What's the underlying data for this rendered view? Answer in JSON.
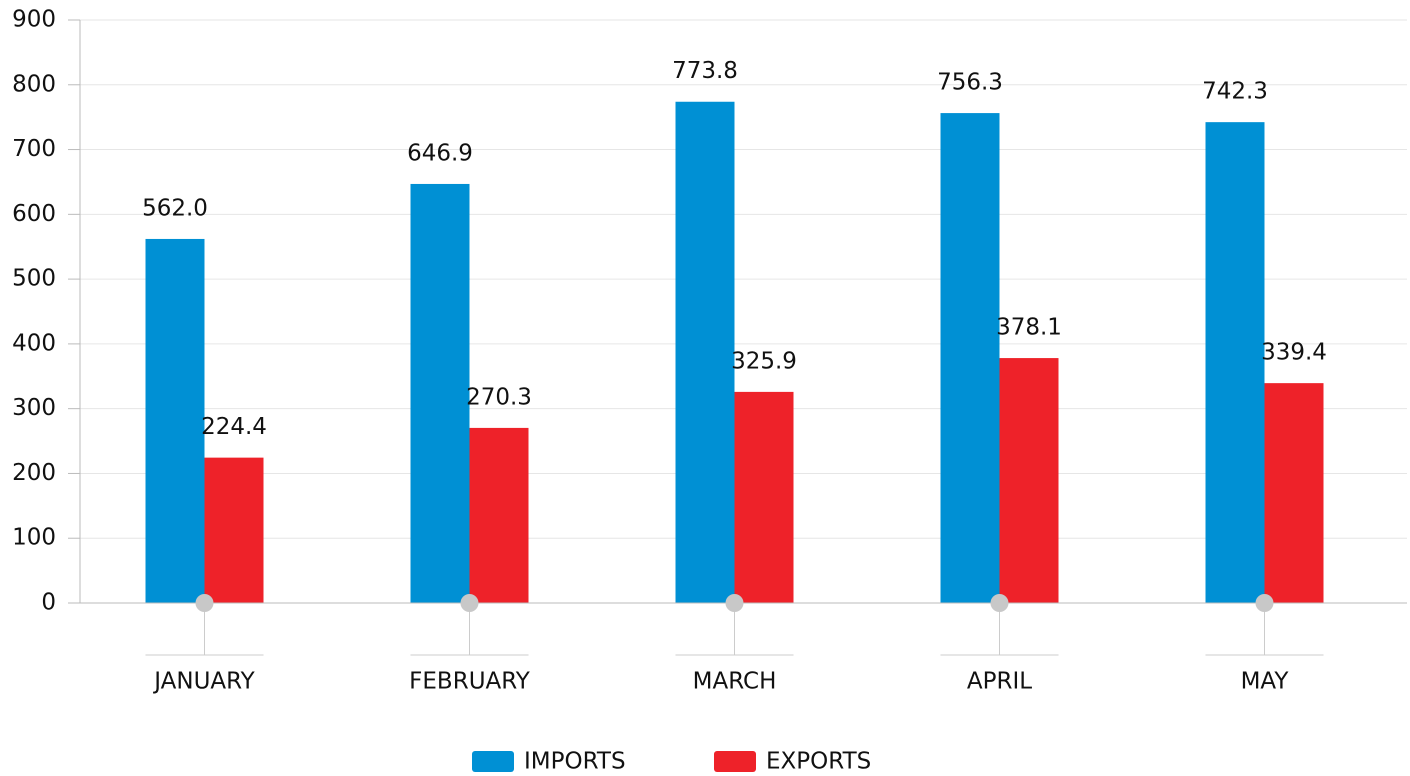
{
  "chart_data": {
    "type": "bar",
    "categories": [
      "JANUARY",
      "FEBRUARY",
      "MARCH",
      "APRIL",
      "MAY"
    ],
    "series": [
      {
        "name": "IMPORTS",
        "color": "#0090d4",
        "values": [
          562.0,
          646.9,
          773.8,
          756.3,
          742.3
        ],
        "value_labels": [
          "562.0",
          "646.9",
          "773.8",
          "756.3",
          "742.3"
        ]
      },
      {
        "name": "EXPORTS",
        "color": "#ee2229",
        "values": [
          224.4,
          270.3,
          325.9,
          378.1,
          339.4
        ],
        "value_labels": [
          "224.4",
          "270.3",
          "325.9",
          "378.1",
          "339.4"
        ]
      }
    ],
    "ylim": [
      0,
      900
    ],
    "yticks": [
      0,
      100,
      200,
      300,
      400,
      500,
      600,
      700,
      800,
      900
    ],
    "grid": true,
    "legend": "bottom"
  }
}
